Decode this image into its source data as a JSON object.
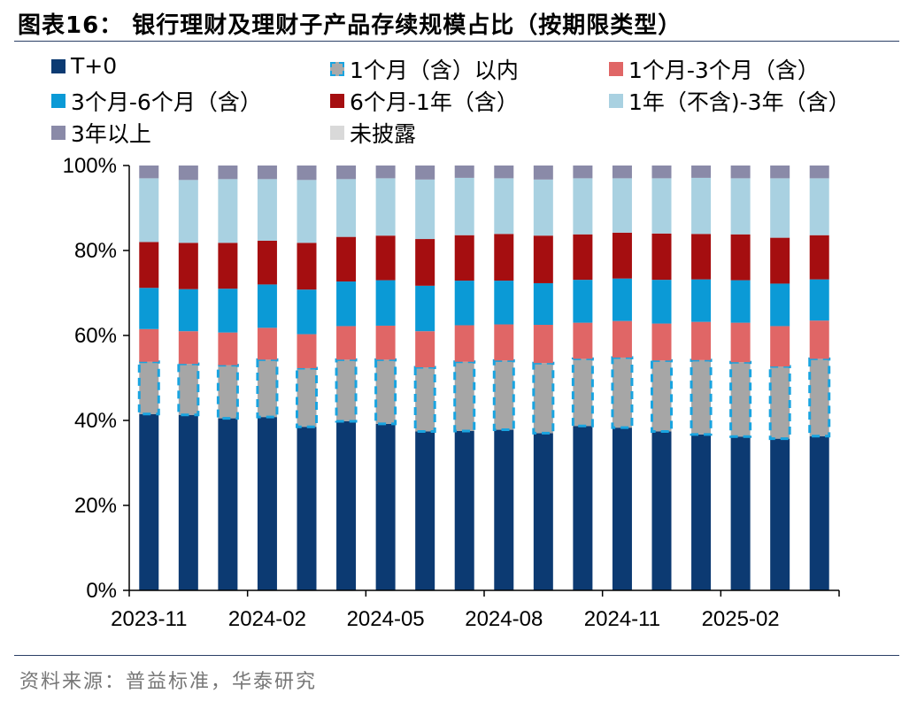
{
  "title": "图表16：  银行理财及理财子产品存续规模占比（按期限类型）",
  "source": "资料来源：普益标准，华泰研究",
  "colors": {
    "T+0": "#0c3a72",
    "1个月（含）以内": "#a6a6a6",
    "1个月-3个月（含）": "#e06666",
    "3个月-6个月（含）": "#0b9ad6",
    "6个月-1年（含）": "#a50e10",
    "1年（不含)-3年（含）": "#a9d1e1",
    "3年以上": "#8a8aa8",
    "未披露": "#d9d9d9",
    "dash_border": "#19a4e0"
  },
  "chart_data": {
    "type": "bar",
    "stacked": true,
    "title": "",
    "xlabel": "",
    "ylabel": "",
    "ylim": [
      0,
      100
    ],
    "y_ticks": [
      "0%",
      "20%",
      "40%",
      "60%",
      "80%",
      "100%"
    ],
    "x_tick_labels": [
      "2023-11",
      "2024-02",
      "2024-05",
      "2024-08",
      "2024-11",
      "2025-02"
    ],
    "categories": [
      "2023-11",
      "2023-12",
      "2024-01",
      "2024-02",
      "2024-03",
      "2024-04",
      "2024-05",
      "2024-06",
      "2024-07",
      "2024-08",
      "2024-09",
      "2024-10",
      "2024-11",
      "2024-12",
      "2025-01",
      "2025-02",
      "2025-03",
      "2025-04"
    ],
    "legend_position": "top",
    "series": [
      {
        "name": "T+0",
        "values": [
          41.5,
          41.3,
          40.5,
          40.8,
          38.5,
          39.8,
          39.2,
          37.4,
          37.5,
          37.8,
          37.0,
          38.7,
          38.3,
          37.4,
          36.7,
          36.2,
          35.7,
          36.3
        ]
      },
      {
        "name": "1个月（含）以内",
        "values": [
          12.3,
          12.0,
          12.5,
          13.5,
          13.8,
          14.5,
          15.1,
          15.1,
          16.3,
          16.3,
          16.5,
          15.8,
          16.5,
          16.7,
          17.5,
          17.5,
          17.0,
          18.2
        ]
      },
      {
        "name": "1个月-3个月（含）",
        "values": [
          7.7,
          7.7,
          7.7,
          7.5,
          8.0,
          7.9,
          8.0,
          8.5,
          8.6,
          8.5,
          9.0,
          8.5,
          8.6,
          8.7,
          9.0,
          9.3,
          9.5,
          9.0
        ]
      },
      {
        "name": "3个月-6个月（含）",
        "values": [
          9.7,
          9.9,
          10.3,
          10.2,
          10.5,
          10.5,
          10.7,
          10.7,
          10.5,
          10.3,
          9.8,
          10.1,
          10.0,
          10.3,
          10.0,
          10.0,
          10.0,
          9.7
        ]
      },
      {
        "name": "6个月-1年（含）",
        "values": [
          10.8,
          10.9,
          10.8,
          10.3,
          11.0,
          10.5,
          10.5,
          11.0,
          10.7,
          11.0,
          11.2,
          10.7,
          10.8,
          10.9,
          10.7,
          10.8,
          10.8,
          10.4
        ]
      },
      {
        "name": "1年（不含)-3年（含）",
        "values": [
          15.0,
          14.8,
          15.0,
          14.5,
          14.8,
          13.6,
          13.5,
          14.0,
          13.5,
          13.1,
          13.2,
          13.2,
          12.8,
          13.0,
          13.2,
          13.2,
          14.0,
          13.4
        ]
      },
      {
        "name": "3年以上",
        "values": [
          3.0,
          3.4,
          3.2,
          3.2,
          3.4,
          3.2,
          3.0,
          3.3,
          2.9,
          3.0,
          3.3,
          3.0,
          3.0,
          3.0,
          2.9,
          3.0,
          3.0,
          3.0
        ]
      },
      {
        "name": "未披露",
        "values": [
          0,
          0,
          0,
          0,
          0,
          0,
          0,
          0,
          0,
          0,
          0,
          0,
          0,
          0,
          0,
          0,
          0,
          0
        ]
      }
    ]
  },
  "legend": [
    {
      "name": "T+0",
      "color_key": "T+0"
    },
    {
      "name": "1个月（含）以内",
      "color_key": "1个月（含）以内",
      "dashed": true
    },
    {
      "name": "1个月-3个月（含）",
      "color_key": "1个月-3个月（含）"
    },
    {
      "name": "3个月-6个月（含）",
      "color_key": "3个月-6个月（含）"
    },
    {
      "name": "6个月-1年（含）",
      "color_key": "6个月-1年（含）"
    },
    {
      "name": "1年（不含)-3年（含）",
      "color_key": "1年（不含)-3年（含）"
    },
    {
      "name": "3年以上",
      "color_key": "3年以上"
    },
    {
      "name": "未披露",
      "color_key": "未披露"
    }
  ]
}
